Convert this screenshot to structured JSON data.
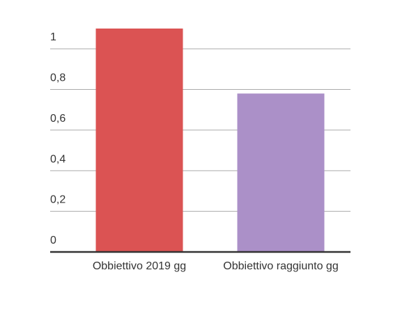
{
  "chart_data": {
    "type": "bar",
    "categories": [
      "Obbiettivo 2019 gg",
      "Obbiettivo raggiunto gg"
    ],
    "values": [
      1.1,
      0.78
    ],
    "colors": [
      "#db5353",
      "#ab90c8"
    ],
    "ylim": [
      0,
      1.1
    ],
    "yticks": [
      0,
      {
        "value": 0.2,
        "label": "0,2"
      },
      {
        "value": 0.4,
        "label": "0,4"
      },
      {
        "value": 0.6,
        "label": "0,6"
      },
      {
        "value": 0.8,
        "label": "0,8"
      },
      1
    ],
    "grid": true
  }
}
